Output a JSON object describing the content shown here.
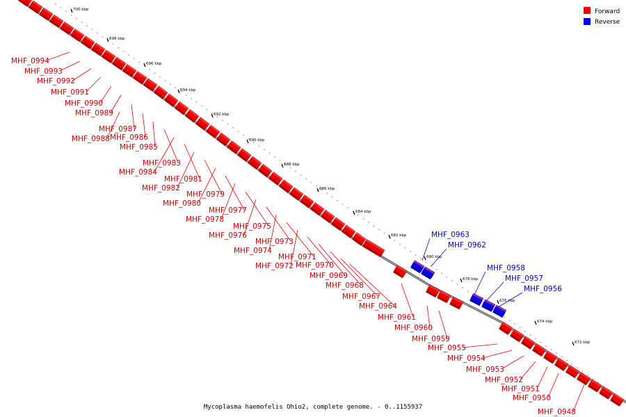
{
  "caption": "Mycoplasma haemofelis Ohio2, complete genome. - 0..1155937",
  "colors": {
    "forward": "#ee0000",
    "forward_edge": "#aa0000",
    "reverse": "#0000ee",
    "reverse_edge": "#0000aa",
    "forward_label": "#cc0000",
    "reverse_label": "#0000cc",
    "backbone": "#888888"
  },
  "legend": [
    {
      "label": "Forward",
      "strand": "forward"
    },
    {
      "label": "Reverse",
      "strand": "reverse"
    }
  ],
  "scale_ticks": [
    "700 kbp",
    "698 kbp",
    "696 kbp",
    "694 kbp",
    "692 kbp",
    "690 kbp",
    "688 kbp",
    "686 kbp",
    "684 kbp",
    "682 kbp",
    "680 kbp",
    "678 kbp",
    "676 kbp",
    "674 kbp",
    "672 kbp"
  ],
  "genes": [
    {
      "name": "MHF_0994",
      "strand": "forward"
    },
    {
      "name": "MHF_0993",
      "strand": "forward"
    },
    {
      "name": "MHF_0992",
      "strand": "forward"
    },
    {
      "name": "MHF_0991",
      "strand": "forward"
    },
    {
      "name": "MHF_0990",
      "strand": "forward"
    },
    {
      "name": "MHF_0989",
      "strand": "forward"
    },
    {
      "name": "MHF_0987",
      "strand": "forward"
    },
    {
      "name": "MHF_0988",
      "strand": "forward"
    },
    {
      "name": "MHF_0986",
      "strand": "forward"
    },
    {
      "name": "MHF_0985",
      "strand": "forward"
    },
    {
      "name": "MHF_0983",
      "strand": "forward"
    },
    {
      "name": "MHF_0984",
      "strand": "forward"
    },
    {
      "name": "MHF_0981",
      "strand": "forward"
    },
    {
      "name": "MHF_0982",
      "strand": "forward"
    },
    {
      "name": "MHF_0979",
      "strand": "forward"
    },
    {
      "name": "MHF_0980",
      "strand": "forward"
    },
    {
      "name": "MHF_0977",
      "strand": "forward"
    },
    {
      "name": "MHF_0978",
      "strand": "forward"
    },
    {
      "name": "MHF_0975",
      "strand": "forward"
    },
    {
      "name": "MHF_0976",
      "strand": "forward"
    },
    {
      "name": "MHF_0973",
      "strand": "forward"
    },
    {
      "name": "MHF_0974",
      "strand": "forward"
    },
    {
      "name": "MHF_0971",
      "strand": "forward"
    },
    {
      "name": "MHF_0972",
      "strand": "forward"
    },
    {
      "name": "MHF_0970",
      "strand": "forward"
    },
    {
      "name": "MHF_0969",
      "strand": "forward"
    },
    {
      "name": "MHF_0968",
      "strand": "forward"
    },
    {
      "name": "MHF_0967",
      "strand": "forward"
    },
    {
      "name": "MHF_0964",
      "strand": "forward"
    },
    {
      "name": "MHF_0963",
      "strand": "reverse"
    },
    {
      "name": "MHF_0962",
      "strand": "reverse"
    },
    {
      "name": "MHF_0961",
      "strand": "forward"
    },
    {
      "name": "MHF_0960",
      "strand": "forward"
    },
    {
      "name": "MHF_0959",
      "strand": "forward"
    },
    {
      "name": "MHF_0958",
      "strand": "reverse"
    },
    {
      "name": "MHF_0957",
      "strand": "reverse"
    },
    {
      "name": "MHF_0956",
      "strand": "reverse"
    },
    {
      "name": "MHF_0955",
      "strand": "forward"
    },
    {
      "name": "MHF_0954",
      "strand": "forward"
    },
    {
      "name": "MHF_0953",
      "strand": "forward"
    },
    {
      "name": "MHF_0952",
      "strand": "forward"
    },
    {
      "name": "MHF_0951",
      "strand": "forward"
    },
    {
      "name": "MHF_0950",
      "strand": "forward"
    },
    {
      "name": "MHF_0948",
      "strand": "forward"
    }
  ]
}
